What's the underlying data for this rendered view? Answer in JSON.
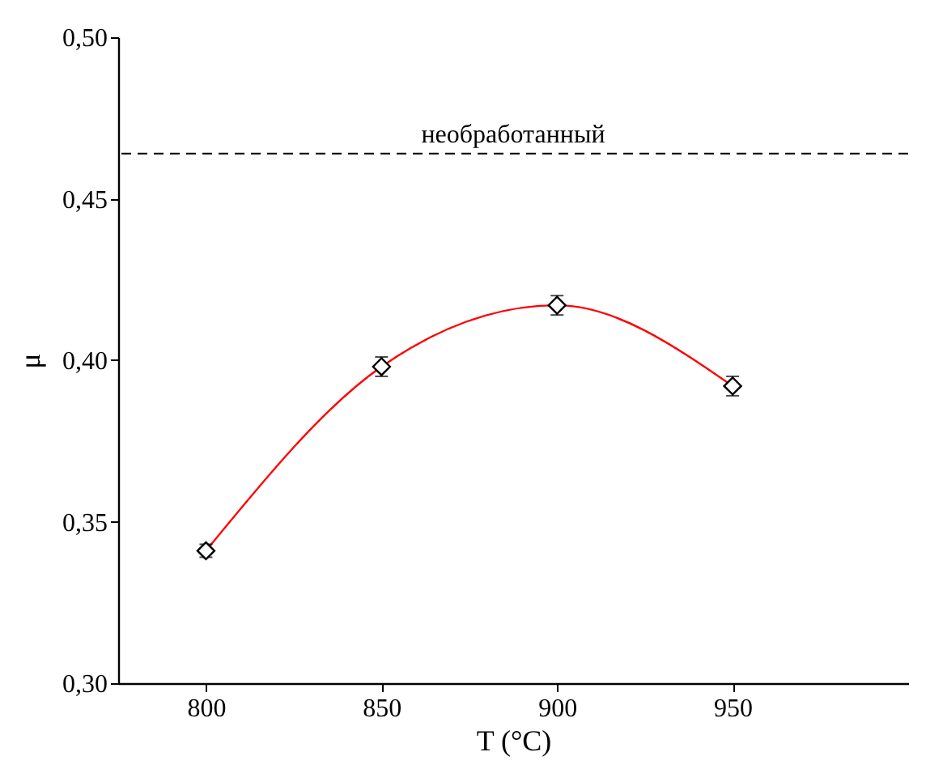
{
  "chart_data": {
    "type": "scatter",
    "xlabel": "T (°C)",
    "ylabel": "μ",
    "x": [
      800,
      850,
      900,
      950
    ],
    "series": [
      {
        "type": "line",
        "color": "#ff0000",
        "values": [
          0.341,
          0.398,
          0.417,
          0.392
        ],
        "line_style": "solid"
      },
      {
        "color": "#000000",
        "values": [
          0.341,
          0.398,
          0.417,
          0.392
        ],
        "errors": [
          0.002,
          0.003,
          0.003,
          0.003
        ],
        "marker": "diamond"
      }
    ],
    "xlim": [
      775,
      1000
    ],
    "xticks": [
      800,
      850,
      900,
      950
    ],
    "ylim": [
      0.3,
      0.5
    ],
    "yticks": [
      {
        "value": 0.3,
        "label": "0,30"
      },
      {
        "value": 0.35,
        "label": "0,35"
      },
      {
        "value": 0.4,
        "label": "0,40"
      },
      {
        "value": 0.45,
        "label": "0,45"
      },
      {
        "value": 0.5,
        "label": "0,50"
      }
    ],
    "ref_lines": [
      {
        "axis": "y",
        "value": 0.464,
        "label": "необработанный",
        "color": "#000000",
        "line_style": "dashed"
      }
    ],
    "grid": false
  }
}
